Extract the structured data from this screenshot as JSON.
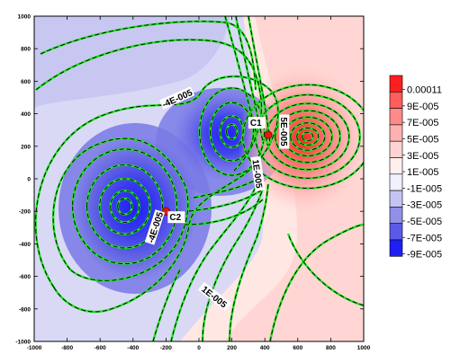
{
  "chart_data": {
    "type": "contour",
    "xlim": [
      -1000,
      1000
    ],
    "ylim": [
      -1000,
      1000
    ],
    "x_ticks": [
      "-1000",
      "-800",
      "-600",
      "-400",
      "-200",
      "0",
      "200",
      "400",
      "600",
      "800",
      "1000"
    ],
    "y_ticks": [
      "1000",
      "800",
      "600",
      "400",
      "200",
      "0",
      "-200",
      "-400",
      "-600",
      "-800",
      "-1000"
    ],
    "contour_levels": [
      -9e-05,
      -7e-05,
      -5e-05,
      -3e-05,
      -1e-05,
      1e-05,
      3e-05,
      5e-05,
      7e-05,
      9e-05,
      0.00011
    ],
    "colorbar": {
      "labels": [
        "0.00011",
        "9E-005",
        "7E-005",
        "5E-005",
        "3E-005",
        "1E-005",
        "-1E-005",
        "-3E-005",
        "-5E-005",
        "-7E-005",
        "-9E-005"
      ],
      "colors": [
        "#ff1e1e",
        "#ff5c5c",
        "#ff8a8a",
        "#ffb0b0",
        "#ffd3d3",
        "#fff0ee",
        "#f0f0ff",
        "#c4c4f4",
        "#9090e8",
        "#5a5ae6",
        "#1e1ef5"
      ]
    },
    "sources": [
      {
        "x": -450,
        "y": -170,
        "sign": "negative"
      },
      {
        "x": 200,
        "y": 290,
        "sign": "negative"
      },
      {
        "x": 660,
        "y": 260,
        "sign": "positive"
      }
    ],
    "points": [
      {
        "label": "C1",
        "x": 420,
        "y": 270
      },
      {
        "label": "C2",
        "x": -200,
        "y": -200
      }
    ],
    "contour_labels": [
      {
        "text": "-4E-005",
        "x": -130,
        "y": 490
      },
      {
        "text": "-4E-005",
        "x": -260,
        "y": -300
      },
      {
        "text": "1E-005",
        "x": 350,
        "y": 30
      },
      {
        "text": "5E-005",
        "x": 510,
        "y": 290
      },
      {
        "text": "1E-005",
        "x": 90,
        "y": -730
      }
    ]
  }
}
